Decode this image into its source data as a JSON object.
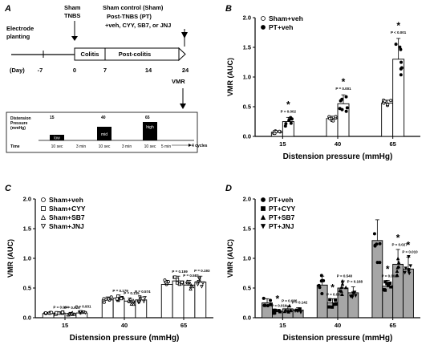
{
  "panel_a": {
    "letter": "A",
    "timeline": {
      "left_label": "Electrode\nplanting",
      "day_prefix": "(Day)",
      "ticks": [
        "-7",
        "0",
        "7",
        "14",
        "24"
      ],
      "top_label_1": "Sham\nTNBS",
      "top_label_2": "Sham control (Sham)\nPost-TNBS (PT)\n+veh, CYY, SB7, or JNJ",
      "segment_1": "Colitis",
      "segment_2": "Post-colitis",
      "vmr_label": "VMR"
    },
    "protocol": {
      "pressure_label": "Distension\nPressure\n(mmHg)",
      "pressures": [
        "15",
        "40",
        "65"
      ],
      "blocks": [
        "low",
        "mid",
        "high"
      ],
      "time_label": "Time",
      "durations": [
        "10 sec",
        "3 min",
        "10 sec",
        "3 min",
        "10 sec",
        "5 min"
      ],
      "cycles": "4 cycles"
    }
  },
  "chart_data": [
    {
      "panel": "B",
      "type": "bar",
      "ylabel": "VMR (AUC)",
      "xlabel": "Distension pressure (mmHg)",
      "categories": [
        "15",
        "40",
        "65"
      ],
      "ylim": [
        0,
        2.0
      ],
      "yticks": [
        "0.0",
        "0.5",
        "1.0",
        "1.5",
        "2.0"
      ],
      "legend_position": "top-left",
      "series": [
        {
          "name": "Sham+veh",
          "marker": "circle-open",
          "fill": "#ffffff",
          "values": [
            0.07,
            0.3,
            0.56
          ],
          "errors": [
            0.02,
            0.04,
            0.05
          ]
        },
        {
          "name": "PT+veh",
          "marker": "circle-filled",
          "fill": "#ffffff",
          "values": [
            0.25,
            0.55,
            1.3
          ],
          "errors": [
            0.07,
            0.15,
            0.35
          ]
        }
      ],
      "annotations": [
        {
          "cat": 0,
          "p": "P = 0.002",
          "star": "*"
        },
        {
          "cat": 1,
          "p": "P = 0.001",
          "star": "*"
        },
        {
          "cat": 2,
          "p": "P < 0.001",
          "star": "*"
        }
      ]
    },
    {
      "panel": "C",
      "type": "bar",
      "ylabel": "VMR (AUC)",
      "xlabel": "Distension pressure (mmHg)",
      "categories": [
        "15",
        "40",
        "65"
      ],
      "ylim": [
        0,
        2.0
      ],
      "yticks": [
        "0.0",
        "0.5",
        "1.0",
        "1.5",
        "2.0"
      ],
      "legend_position": "top-left",
      "series": [
        {
          "name": "Sham+veh",
          "marker": "circle-open",
          "fill": "#ffffff",
          "values": [
            0.07,
            0.3,
            0.56
          ],
          "errors": [
            0.02,
            0.05,
            0.07
          ]
        },
        {
          "name": "Sham+CYY",
          "marker": "square-open",
          "fill": "#ffffff",
          "values": [
            0.08,
            0.33,
            0.62
          ],
          "errors": [
            0.02,
            0.05,
            0.08
          ]
        },
        {
          "name": "Sham+SB7",
          "marker": "triangle-open",
          "fill": "#ffffff",
          "values": [
            0.07,
            0.28,
            0.55
          ],
          "errors": [
            0.02,
            0.05,
            0.08
          ]
        },
        {
          "name": "Sham+JNJ",
          "marker": "triangle-down-open",
          "fill": "#ffffff",
          "values": [
            0.08,
            0.3,
            0.6
          ],
          "errors": [
            0.02,
            0.05,
            0.1
          ]
        }
      ],
      "annotations": [
        {
          "cat": 0,
          "labels": [
            "P = 0.934",
            "P = 0.929",
            "P = 0.931"
          ]
        },
        {
          "cat": 1,
          "labels": [
            "P = 0.179",
            "P = 0.135",
            "P = 0.574"
          ]
        },
        {
          "cat": 2,
          "labels": [
            "P = 0.159",
            "P = 0.583",
            "P = 0.193"
          ]
        }
      ]
    },
    {
      "panel": "D",
      "type": "bar",
      "ylabel": "VMR (AUC)",
      "xlabel": "Distension pressure (mmHg)",
      "categories": [
        "15",
        "40",
        "65"
      ],
      "ylim": [
        0,
        2.0
      ],
      "yticks": [
        "0.0",
        "0.5",
        "1.0",
        "1.5",
        "2.0"
      ],
      "legend_position": "top-left",
      "series": [
        {
          "name": "PT+veh",
          "marker": "circle-filled",
          "fill": "#a6a6a6",
          "values": [
            0.25,
            0.55,
            1.3
          ],
          "errors": [
            0.07,
            0.15,
            0.35
          ]
        },
        {
          "name": "PT+CYY",
          "marker": "square-filled",
          "fill": "#a6a6a6",
          "values": [
            0.1,
            0.25,
            0.53
          ],
          "errors": [
            0.03,
            0.07,
            0.1
          ]
        },
        {
          "name": "PT+SB7",
          "marker": "triangle-filled",
          "fill": "#a6a6a6",
          "values": [
            0.15,
            0.5,
            0.9
          ],
          "errors": [
            0.05,
            0.12,
            0.25
          ]
        },
        {
          "name": "PT+JNJ",
          "marker": "triangle-down-filled",
          "fill": "#a6a6a6",
          "values": [
            0.13,
            0.42,
            0.82
          ],
          "errors": [
            0.04,
            0.1,
            0.2
          ]
        }
      ],
      "annotations": [
        {
          "cat": 0,
          "labels": [
            "P = 0.016",
            "P = 0.086",
            "P = 0.142"
          ],
          "stars": [
            1
          ]
        },
        {
          "cat": 1,
          "labels": [
            "P = 0.002",
            "P = 0.540",
            "P = 0.168"
          ],
          "stars": [
            1
          ]
        },
        {
          "cat": 2,
          "labels": [
            "P = 0.001",
            "P = 0.027",
            "P = 0.010"
          ],
          "stars": [
            1,
            2,
            3
          ]
        }
      ]
    }
  ]
}
